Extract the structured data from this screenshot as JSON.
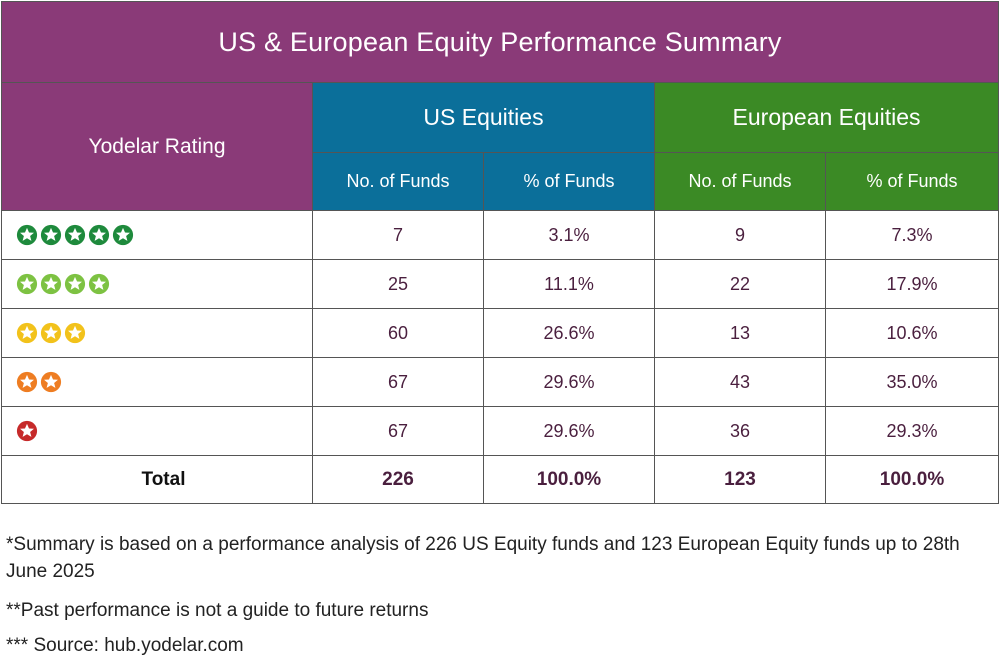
{
  "title": "US & European Equity Performance Summary",
  "header": {
    "rating": "Yodelar Rating",
    "us": "US Equities",
    "eu": "European Equities",
    "no_funds": "No. of Funds",
    "pct_funds": "% of Funds"
  },
  "colors": {
    "title_bg": "#8a3a78",
    "us_bg": "#0b6f9a",
    "eu_bg": "#3b8a25",
    "star5": "#1e8a3c",
    "star4": "#7dc242",
    "star3": "#f2c21b",
    "star2": "#ee7d22",
    "star1": "#c62a2a"
  },
  "rows": [
    {
      "stars": 5,
      "star_icon": "green-star-icon",
      "us_no": "7",
      "us_pct": "3.1%",
      "eu_no": "9",
      "eu_pct": "7.3%"
    },
    {
      "stars": 4,
      "star_icon": "light-green-star-icon",
      "us_no": "25",
      "us_pct": "11.1%",
      "eu_no": "22",
      "eu_pct": "17.9%"
    },
    {
      "stars": 3,
      "star_icon": "yellow-star-icon",
      "us_no": "60",
      "us_pct": "26.6%",
      "eu_no": "13",
      "eu_pct": "10.6%"
    },
    {
      "stars": 2,
      "star_icon": "orange-star-icon",
      "us_no": "67",
      "us_pct": "29.6%",
      "eu_no": "43",
      "eu_pct": "35.0%"
    },
    {
      "stars": 1,
      "star_icon": "red-star-icon",
      "us_no": "67",
      "us_pct": "29.6%",
      "eu_no": "36",
      "eu_pct": "29.3%"
    }
  ],
  "total": {
    "label": "Total",
    "us_no": "226",
    "us_pct": "100.0%",
    "eu_no": "123",
    "eu_pct": "100.0%"
  },
  "footnotes": [
    "*Summary is based on a performance analysis of 226 US Equity funds and 123 European Equity funds up to 28th June 2025",
    "**Past performance is not a guide to future returns",
    "*** Source: hub.yodelar.com"
  ]
}
